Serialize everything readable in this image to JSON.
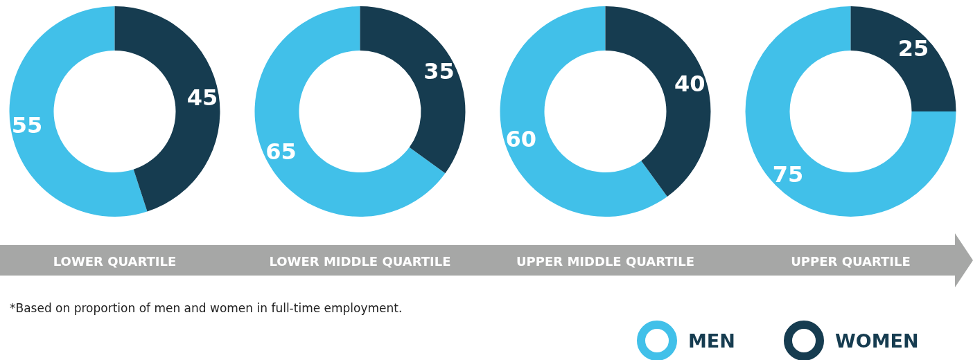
{
  "chart_data": [
    {
      "type": "donut",
      "title": "LOWER QUARTILE",
      "categories": [
        null,
        null
      ],
      "values": [
        55,
        45
      ],
      "colors": [
        "#41c0e9",
        "#163c50"
      ],
      "data_labels": true,
      "annotations": [
        "*Based on proportion of men and women in full-time employment."
      ]
    },
    {
      "type": "donut",
      "title": "LOWER MIDDLE QUARTILE",
      "categories": [
        null,
        null
      ],
      "values": [
        65,
        35
      ],
      "colors": [
        "#41c0e9",
        "#163c50"
      ],
      "data_labels": true
    },
    {
      "type": "donut",
      "title": "UPPER MIDDLE QUARTILE",
      "categories": [
        null,
        null
      ],
      "values": [
        60,
        40
      ],
      "colors": [
        "#41c0e9",
        "#163c50"
      ],
      "data_labels": true
    },
    {
      "type": "donut",
      "title": "UPPER QUARTILE",
      "categories": [
        "MEN",
        "WOMEN"
      ],
      "values": [
        75,
        25
      ],
      "colors": [
        "#41c0e9",
        "#163c50"
      ],
      "data_labels": true,
      "legend": "bottom"
    }
  ]
}
